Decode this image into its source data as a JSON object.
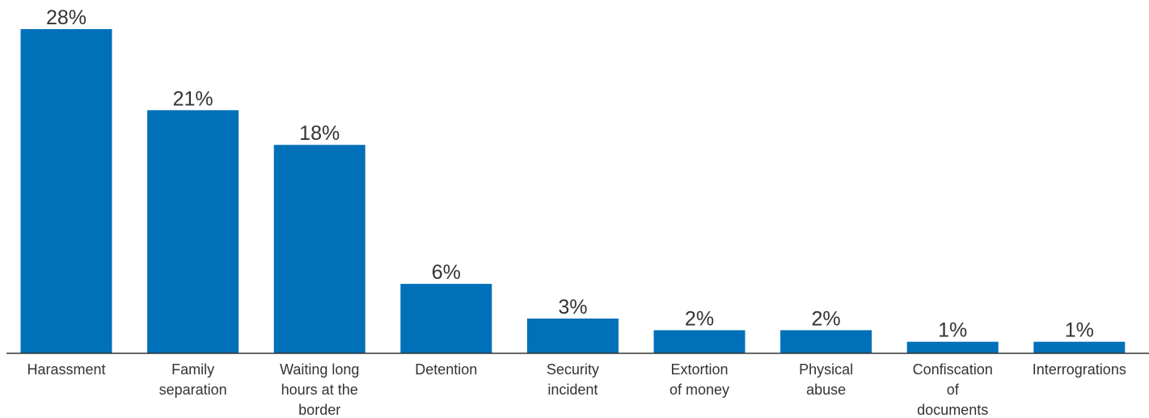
{
  "chart_data": {
    "type": "bar",
    "categories": [
      [
        "Harassment"
      ],
      [
        "Family",
        "separation"
      ],
      [
        "Waiting long",
        "hours at the",
        "border"
      ],
      [
        "Detention"
      ],
      [
        "Security",
        "incident"
      ],
      [
        "Extortion",
        "of money"
      ],
      [
        "Physical",
        "abuse"
      ],
      [
        "Confiscation",
        "of",
        "documents"
      ],
      [
        "Interrogrations"
      ]
    ],
    "values": [
      28,
      21,
      18,
      6,
      3,
      2,
      2,
      1,
      1
    ],
    "value_labels": [
      "28%",
      "21%",
      "18%",
      "6%",
      "3%",
      "2%",
      "2%",
      "1%",
      "1%"
    ],
    "ylim": [
      0,
      28
    ],
    "bar_color": "#0070b8",
    "axis_color": "#333333",
    "grid": false,
    "legend": "none"
  }
}
